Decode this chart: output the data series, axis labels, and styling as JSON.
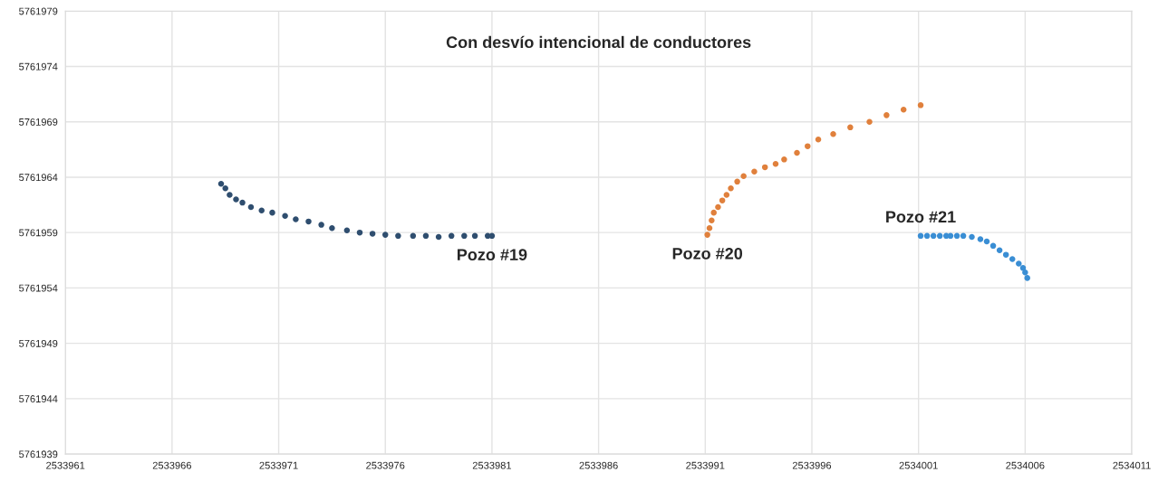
{
  "chart_data": {
    "type": "scatter",
    "title": "Con desvío intencional de conductores",
    "xlim": [
      2533961,
      2534011
    ],
    "xticks": [
      2533961,
      2533966,
      2533971,
      2533976,
      2533981,
      2533986,
      2533991,
      2533996,
      2534001,
      2534006,
      2534011
    ],
    "ylim": [
      5761939,
      5761979
    ],
    "yticks": [
      5761939,
      5761944,
      5761949,
      5761954,
      5761959,
      5761964,
      5761969,
      5761974,
      5761979
    ],
    "grid": true,
    "marker": "circle",
    "legend": false,
    "series": [
      {
        "name": "Pozo #19",
        "color": "#2f4e6f",
        "x": [
          2533968.3,
          2533968.5,
          2533968.7,
          2533969.0,
          2533969.3,
          2533969.7,
          2533970.2,
          2533970.7,
          2533971.3,
          2533971.8,
          2533972.4,
          2533973.0,
          2533973.5,
          2533974.2,
          2533974.8,
          2533975.4,
          2533976.0,
          2533976.6,
          2533977.3,
          2533977.9,
          2533978.5,
          2533979.1,
          2533979.7,
          2533980.2,
          2533980.8,
          2533981.0
        ],
        "values": [
          5761963.4,
          5761963.0,
          5761962.4,
          5761962.0,
          5761961.7,
          5761961.3,
          5761961.0,
          5761960.8,
          5761960.5,
          5761960.2,
          5761960.0,
          5761959.7,
          5761959.4,
          5761959.2,
          5761959.0,
          5761958.9,
          5761958.8,
          5761958.7,
          5761958.7,
          5761958.7,
          5761958.6,
          5761958.7,
          5761958.7,
          5761958.7,
          5761958.7,
          5761958.7
        ]
      },
      {
        "name": "Pozo #20",
        "color": "#e0803c",
        "x": [
          2533991.1,
          2533991.2,
          2533991.3,
          2533991.4,
          2533991.6,
          2533991.8,
          2533992.0,
          2533992.2,
          2533992.5,
          2533992.8,
          2533993.3,
          2533993.8,
          2533994.3,
          2533994.7,
          2533995.3,
          2533995.8,
          2533996.3,
          2533997.0,
          2533997.8,
          2533998.7,
          2533999.5,
          2534000.3,
          2534001.1
        ],
        "values": [
          5761958.8,
          5761959.4,
          5761960.1,
          5761960.8,
          5761961.3,
          5761961.9,
          5761962.4,
          5761963.0,
          5761963.6,
          5761964.1,
          5761964.5,
          5761964.9,
          5761965.2,
          5761965.6,
          5761966.2,
          5761966.8,
          5761967.4,
          5761967.9,
          5761968.5,
          5761969.0,
          5761969.6,
          5761970.1,
          5761970.5
        ]
      },
      {
        "name": "Pozo #21",
        "color": "#3a8ed4",
        "x": [
          2534001.1,
          2534001.4,
          2534001.7,
          2534002.0,
          2534002.3,
          2534002.5,
          2534002.8,
          2534003.1,
          2534003.5,
          2534003.9,
          2534004.2,
          2534004.5,
          2534004.8,
          2534005.1,
          2534005.4,
          2534005.7,
          2534005.9,
          2534006.0,
          2534006.1
        ],
        "values": [
          5761958.7,
          5761958.7,
          5761958.7,
          5761958.7,
          5761958.7,
          5761958.7,
          5761958.7,
          5761958.7,
          5761958.6,
          5761958.4,
          5761958.2,
          5761957.8,
          5761957.4,
          5761957.0,
          5761956.6,
          5761956.2,
          5761955.8,
          5761955.4,
          5761954.9
        ]
      }
    ]
  }
}
